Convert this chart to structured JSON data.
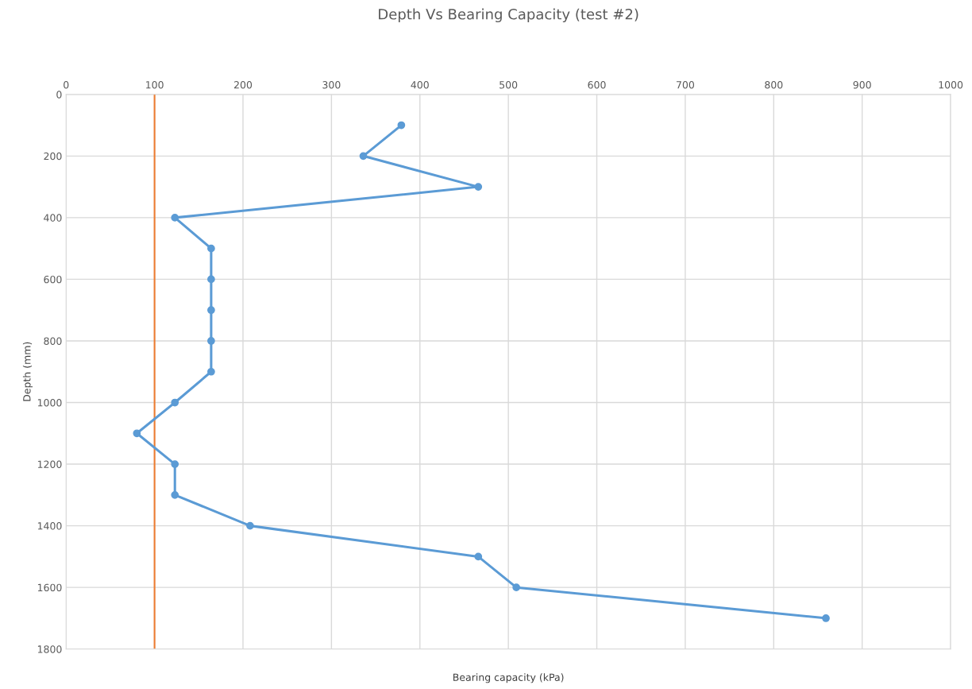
{
  "chart_data": {
    "type": "line",
    "title": "Depth Vs Bearing Capacity (test #2)",
    "xlabel": "Bearing capacity (kPa)",
    "ylabel": "Depth (mm)",
    "xlim": [
      0,
      1000
    ],
    "xticks": [
      0,
      100,
      200,
      300,
      400,
      500,
      600,
      700,
      800,
      900,
      1000
    ],
    "ylim": [
      1800,
      0
    ],
    "yticks": [
      0,
      200,
      400,
      600,
      800,
      1000,
      1200,
      1400,
      1600,
      1800
    ],
    "series": [
      {
        "color": "#5b9bd5",
        "x": [
          379,
          336,
          466,
          123,
          164,
          164,
          164,
          164,
          164,
          123,
          80,
          123,
          123,
          208,
          466,
          509,
          859
        ],
        "values": [
          100,
          200,
          300,
          400,
          500,
          600,
          700,
          800,
          900,
          1000,
          1100,
          1200,
          1300,
          1400,
          1500,
          1600,
          1700
        ]
      }
    ],
    "ref_lines": [
      {
        "axis": "x",
        "value": 100,
        "color": "#ed7d31",
        "line_style": "solid"
      }
    ],
    "grid": true,
    "marker": "circle",
    "line_style": "solid",
    "legend": false
  }
}
